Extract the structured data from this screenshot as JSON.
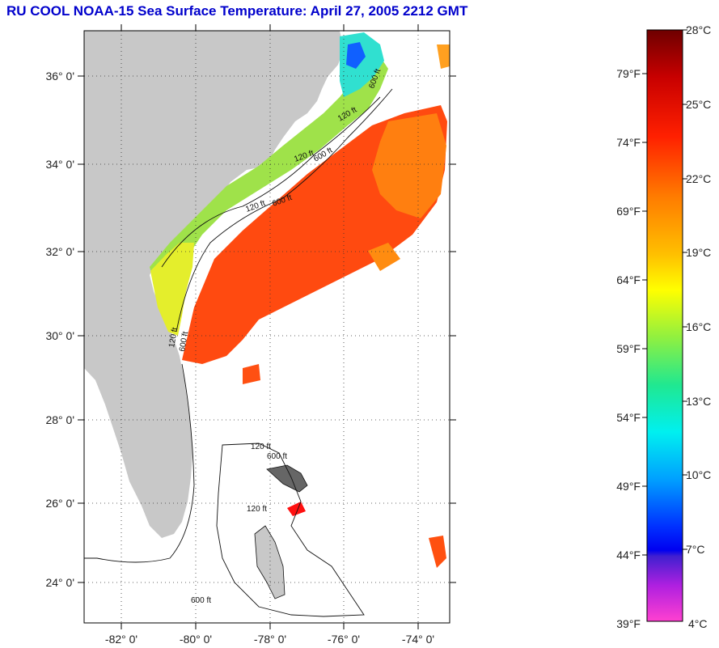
{
  "title": "RU COOL  NOAA-15  Sea Surface Temperature:  April 27, 2005 2212 GMT",
  "map": {
    "lon_ticks": [
      {
        "value": -82,
        "label": "-82° 0'"
      },
      {
        "value": -80,
        "label": "-80° 0'"
      },
      {
        "value": -78,
        "label": "-78° 0'"
      },
      {
        "value": -76,
        "label": "-76° 0'"
      },
      {
        "value": -74,
        "label": "-74° 0'"
      }
    ],
    "lat_ticks": [
      {
        "value": 36,
        "label": "36° 0'"
      },
      {
        "value": 34,
        "label": "34° 0'"
      },
      {
        "value": 32,
        "label": "32° 0'"
      },
      {
        "value": 30,
        "label": "30° 0'"
      },
      {
        "value": 28,
        "label": "28° 0'"
      },
      {
        "value": 26,
        "label": "26° 0'"
      },
      {
        "value": 24,
        "label": "24° 0'"
      }
    ],
    "contour_labels": [
      "120 ft",
      "600 ft",
      "120 ft",
      "600 ft",
      "120 ft",
      "600 ft",
      "120 ft",
      "600 ft",
      "120 ft",
      "600 ft",
      "120 ft",
      "600 ft"
    ],
    "colors": {
      "land": "#c8c8c8",
      "water_no_data": "#ffffff",
      "gulf_stream": "#ff4a10",
      "shelf": "#7fe060",
      "nearshore": "#e8ee30"
    }
  },
  "colorbar": {
    "fahrenheit": [
      "79°F",
      "74°F",
      "69°F",
      "64°F",
      "59°F",
      "54°F",
      "49°F",
      "44°F",
      "39°F"
    ],
    "celsius": [
      "28°C",
      "25°C",
      "22°C",
      "19°C",
      "16°C",
      "13°C",
      "10°C",
      "7°C",
      "4°C"
    ]
  }
}
